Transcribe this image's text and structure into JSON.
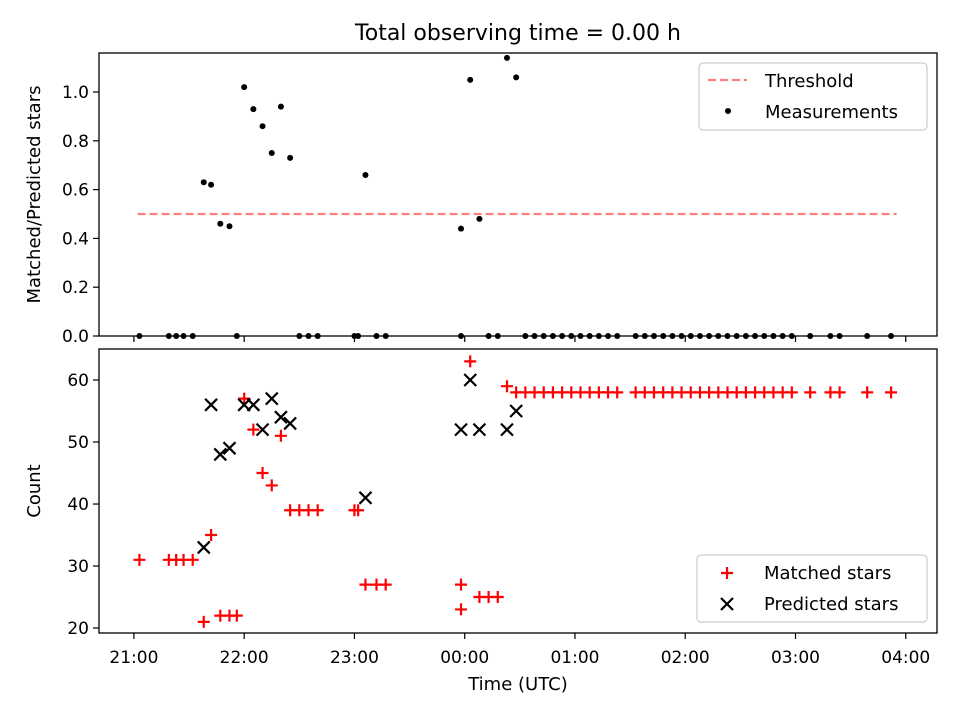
{
  "figure_title": "Total observing time = 0.00 h",
  "xlabel": "Time (UTC)",
  "x_ticks": [
    {
      "label": "21:00",
      "value": 0
    },
    {
      "label": "22:00",
      "value": 60
    },
    {
      "label": "23:00",
      "value": 120
    },
    {
      "label": "00:00",
      "value": 180
    },
    {
      "label": "01:00",
      "value": 240
    },
    {
      "label": "02:00",
      "value": 300
    },
    {
      "label": "03:00",
      "value": 360
    },
    {
      "label": "04:00",
      "value": 420
    }
  ],
  "colors": {
    "threshold": "#ff7f7f",
    "measurement": "#000000",
    "matched": "#ff0000",
    "predicted": "#000000"
  },
  "chart_data": [
    {
      "type": "scatter",
      "title": "",
      "xlabel": "",
      "ylabel": "Matched/Predicted stars",
      "xlim": [
        -19,
        437
      ],
      "ylim": [
        0,
        1.16
      ],
      "yticks": [
        "0.0",
        "0.2",
        "0.4",
        "0.6",
        "0.8",
        "1.0"
      ],
      "yticks_values": [
        0,
        0.2,
        0.4,
        0.6,
        0.8,
        1.0
      ],
      "legend": {
        "position": "top-right",
        "entries": [
          "Threshold",
          "Measurements"
        ]
      },
      "threshold": {
        "name": "Threshold",
        "style": "dashed",
        "y": 0.5,
        "x": [
          2,
          415
        ]
      },
      "series": [
        {
          "name": "Measurements",
          "points": [
            [
              3,
              0
            ],
            [
              19,
              0
            ],
            [
              23,
              0
            ],
            [
              27,
              0
            ],
            [
              32,
              0
            ],
            [
              38,
              0.63
            ],
            [
              42,
              0.62
            ],
            [
              47,
              0.46
            ],
            [
              52,
              0.45
            ],
            [
              56,
              0
            ],
            [
              60,
              1.02
            ],
            [
              65,
              0.93
            ],
            [
              70,
              0.86
            ],
            [
              75,
              0.75
            ],
            [
              80,
              0.94
            ],
            [
              85,
              0.73
            ],
            [
              90,
              0
            ],
            [
              95,
              0
            ],
            [
              100,
              0
            ],
            [
              120,
              0
            ],
            [
              122,
              0
            ],
            [
              126,
              0.66
            ],
            [
              132,
              0
            ],
            [
              137,
              0
            ],
            [
              178,
              0
            ],
            [
              178,
              0.44
            ],
            [
              183,
              1.05
            ],
            [
              188,
              0.48
            ],
            [
              193,
              0
            ],
            [
              198,
              0
            ],
            [
              203,
              1.14
            ],
            [
              208,
              1.06
            ],
            [
              213,
              0
            ],
            [
              218,
              0
            ],
            [
              223,
              0
            ],
            [
              228,
              0
            ],
            [
              233,
              0
            ],
            [
              238,
              0
            ],
            [
              243,
              0
            ],
            [
              248,
              0
            ],
            [
              253,
              0
            ],
            [
              258,
              0
            ],
            [
              263,
              0
            ],
            [
              273,
              0
            ],
            [
              278,
              0
            ],
            [
              283,
              0
            ],
            [
              288,
              0
            ],
            [
              293,
              0
            ],
            [
              298,
              0
            ],
            [
              303,
              0
            ],
            [
              308,
              0
            ],
            [
              313,
              0
            ],
            [
              318,
              0
            ],
            [
              323,
              0
            ],
            [
              328,
              0
            ],
            [
              333,
              0
            ],
            [
              338,
              0
            ],
            [
              343,
              0
            ],
            [
              348,
              0
            ],
            [
              353,
              0
            ],
            [
              358,
              0
            ],
            [
              368,
              0
            ],
            [
              379,
              0
            ],
            [
              384,
              0
            ],
            [
              399,
              0
            ],
            [
              412,
              0
            ]
          ]
        }
      ]
    },
    {
      "type": "scatter",
      "title": "",
      "xlabel": "Time (UTC)",
      "ylabel": "Count",
      "xlim": [
        -19,
        437
      ],
      "ylim": [
        19.2,
        65
      ],
      "yticks": [
        "20",
        "30",
        "40",
        "50",
        "60"
      ],
      "yticks_values": [
        20,
        30,
        40,
        50,
        60
      ],
      "legend": {
        "position": "bottom-right",
        "entries": [
          "Matched stars",
          "Predicted stars"
        ]
      },
      "series": [
        {
          "name": "Matched stars",
          "marker": "plus",
          "points": [
            [
              3,
              31
            ],
            [
              19,
              31
            ],
            [
              23,
              31
            ],
            [
              27,
              31
            ],
            [
              32,
              31
            ],
            [
              38,
              21
            ],
            [
              42,
              35
            ],
            [
              47,
              22
            ],
            [
              52,
              22
            ],
            [
              56,
              22
            ],
            [
              60,
              57
            ],
            [
              65,
              52
            ],
            [
              70,
              45
            ],
            [
              75,
              43
            ],
            [
              80,
              51
            ],
            [
              85,
              39
            ],
            [
              90,
              39
            ],
            [
              95,
              39
            ],
            [
              100,
              39
            ],
            [
              120,
              39
            ],
            [
              122,
              39
            ],
            [
              126,
              27
            ],
            [
              132,
              27
            ],
            [
              137,
              27
            ],
            [
              178,
              27
            ],
            [
              178,
              23
            ],
            [
              183,
              63
            ],
            [
              188,
              25
            ],
            [
              193,
              25
            ],
            [
              198,
              25
            ],
            [
              203,
              59
            ],
            [
              208,
              58
            ],
            [
              213,
              58
            ],
            [
              218,
              58
            ],
            [
              223,
              58
            ],
            [
              228,
              58
            ],
            [
              233,
              58
            ],
            [
              238,
              58
            ],
            [
              243,
              58
            ],
            [
              248,
              58
            ],
            [
              253,
              58
            ],
            [
              258,
              58
            ],
            [
              263,
              58
            ],
            [
              273,
              58
            ],
            [
              278,
              58
            ],
            [
              283,
              58
            ],
            [
              288,
              58
            ],
            [
              293,
              58
            ],
            [
              298,
              58
            ],
            [
              303,
              58
            ],
            [
              308,
              58
            ],
            [
              313,
              58
            ],
            [
              318,
              58
            ],
            [
              323,
              58
            ],
            [
              328,
              58
            ],
            [
              333,
              58
            ],
            [
              338,
              58
            ],
            [
              343,
              58
            ],
            [
              348,
              58
            ],
            [
              353,
              58
            ],
            [
              358,
              58
            ],
            [
              368,
              58
            ],
            [
              379,
              58
            ],
            [
              384,
              58
            ],
            [
              399,
              58
            ],
            [
              412,
              58
            ]
          ]
        },
        {
          "name": "Predicted stars",
          "marker": "x",
          "points": [
            [
              38,
              33
            ],
            [
              42,
              56
            ],
            [
              47,
              48
            ],
            [
              52,
              49
            ],
            [
              60,
              56
            ],
            [
              65,
              56
            ],
            [
              70,
              52
            ],
            [
              75,
              57
            ],
            [
              80,
              54
            ],
            [
              85,
              53
            ],
            [
              126,
              41
            ],
            [
              178,
              52
            ],
            [
              183,
              60
            ],
            [
              188,
              52
            ],
            [
              203,
              52
            ],
            [
              208,
              55
            ]
          ]
        }
      ]
    }
  ]
}
